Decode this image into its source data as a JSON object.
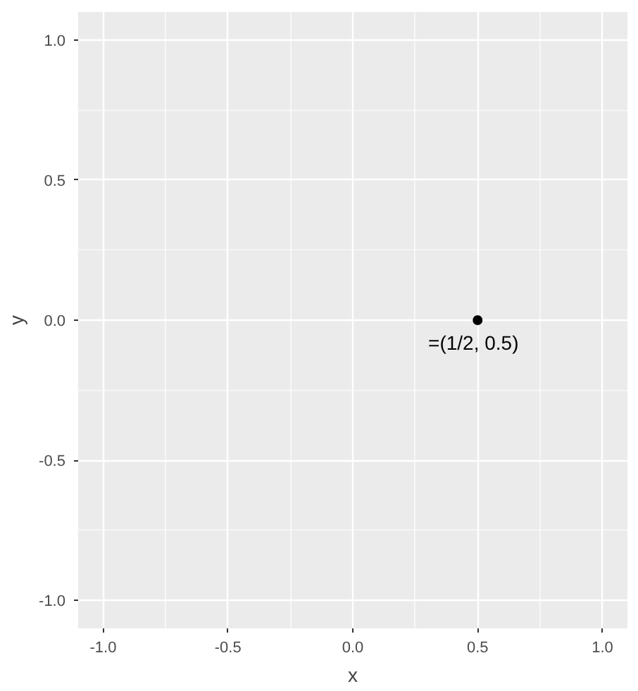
{
  "chart_data": {
    "type": "scatter",
    "xlabel": "x",
    "ylabel": "y",
    "x": [
      0.5
    ],
    "values": [
      0
    ],
    "color": "#000000",
    "marker": "circle",
    "xlim": [
      -1.1,
      1.1
    ],
    "ylim": [
      -1.1,
      1.1
    ],
    "xticks": [
      {
        "value": -1,
        "label": "-1.0"
      },
      -0.5,
      {
        "value": 0,
        "label": "0.0"
      },
      0.5,
      {
        "value": 1,
        "label": "1.0"
      }
    ],
    "yticks": [
      {
        "value": -1,
        "label": "-1.0"
      },
      -0.5,
      {
        "value": 0,
        "label": "0.0"
      },
      0.5,
      {
        "value": 1,
        "label": "1.0"
      }
    ],
    "grid": true,
    "annotations": [
      {
        "text": "=(1/2, 0.5)",
        "x": 0.5,
        "y": 0
      }
    ]
  }
}
